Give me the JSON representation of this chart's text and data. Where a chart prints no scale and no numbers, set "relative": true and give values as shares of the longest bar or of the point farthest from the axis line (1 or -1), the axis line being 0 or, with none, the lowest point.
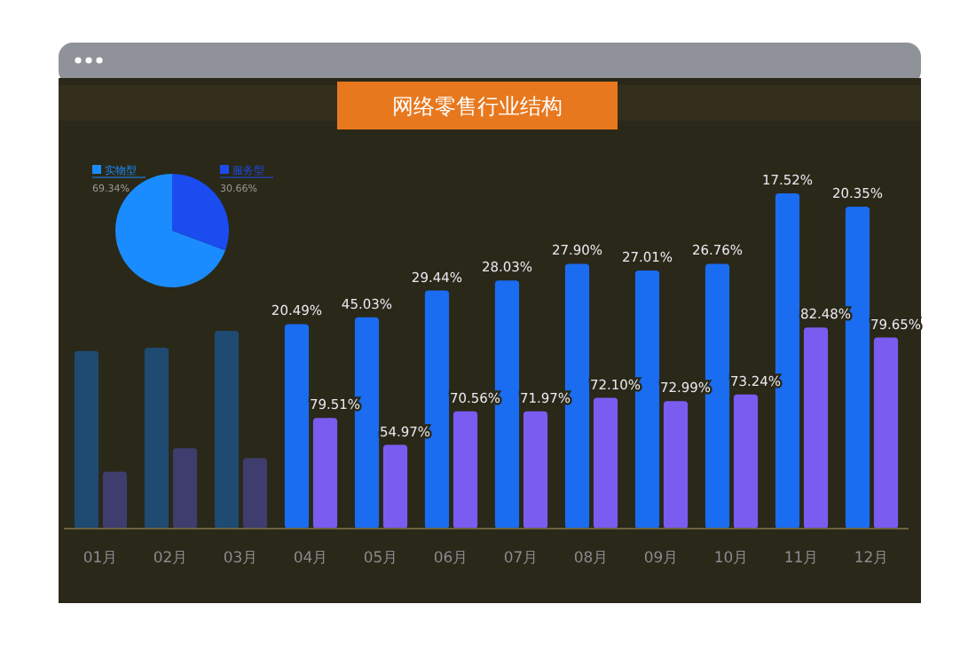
{
  "chart_data": [
    {
      "type": "bar",
      "title": "网络零售行业结构",
      "relative": true,
      "categories": [
        "01月",
        "02月",
        "03月",
        "04月",
        "05月",
        "06月",
        "07月",
        "08月",
        "09月",
        "10月",
        "11月",
        "12月"
      ],
      "series": [
        {
          "colors": [
            "#1f4a72",
            "#1f4a72",
            "#1f4a72",
            "#1a6cf0",
            "#1a6cf0",
            "#1a6cf0",
            "#1a6cf0",
            "#1a6cf0",
            "#1a6cf0",
            "#1a6cf0",
            "#1a6cf0",
            "#1a6cf0"
          ],
          "values": [
            0.53,
            0.54,
            0.59,
            0.61,
            0.63,
            0.71,
            0.74,
            0.79,
            0.77,
            0.79,
            1,
            0.96
          ]
        },
        {
          "colors": [
            "#3f3c6e",
            "#3f3c6e",
            "#3f3c6e",
            "#7a5cf0",
            "#7a5cf0",
            "#7a5cf0",
            "#7a5cf0",
            "#7a5cf0",
            "#7a5cf0",
            "#7a5cf0",
            "#7a5cf0",
            "#7a5cf0"
          ],
          "values": [
            0.17,
            0.24,
            0.21,
            0.33,
            0.25,
            0.35,
            0.35,
            0.39,
            0.38,
            0.4,
            0.6,
            0.57
          ]
        }
      ],
      "annotations": [
        {
          "text": "20.49%",
          "x": "04月",
          "y": 0.61
        },
        {
          "text": "45.03%",
          "x": "05月",
          "y": 0.63
        },
        {
          "text": "29.44%",
          "x": "06月",
          "y": 0.71
        },
        {
          "text": "28.03%",
          "x": "07月",
          "y": 0.74
        },
        {
          "text": "27.90%",
          "x": "08月",
          "y": 0.79
        },
        {
          "text": "27.01%",
          "x": "09月",
          "y": 0.77
        },
        {
          "text": "26.76%",
          "x": "10月",
          "y": 0.79
        },
        {
          "text": "17.52%",
          "x": "11月",
          "y": 1
        },
        {
          "text": "20.35%",
          "x": "12月",
          "y": 0.96
        },
        {
          "text": "79.51%",
          "x": "04月",
          "y": 0.33
        },
        {
          "text": "54.97%",
          "x": "05月",
          "y": 0.25
        },
        {
          "text": "70.56%",
          "x": "06月",
          "y": 0.35
        },
        {
          "text": "71.97%",
          "x": "07月",
          "y": 0.35
        },
        {
          "text": "72.10%",
          "x": "08月",
          "y": 0.39
        },
        {
          "text": "72.99%",
          "x": "09月",
          "y": 0.38
        },
        {
          "text": "73.24%",
          "x": "10月",
          "y": 0.4
        },
        {
          "text": "82.48%",
          "x": "11月",
          "y": 0.6
        },
        {
          "text": "79.65%",
          "x": "12月",
          "y": 0.57
        }
      ]
    },
    {
      "type": "pie",
      "categories": [
        "实物型",
        "服务型"
      ],
      "values": [
        69.34,
        30.66
      ],
      "colors": [
        "#1a8cff",
        "#1a4cf0"
      ],
      "value_labels": [
        "69.34%",
        "30.66%"
      ],
      "legend": "top"
    }
  ]
}
